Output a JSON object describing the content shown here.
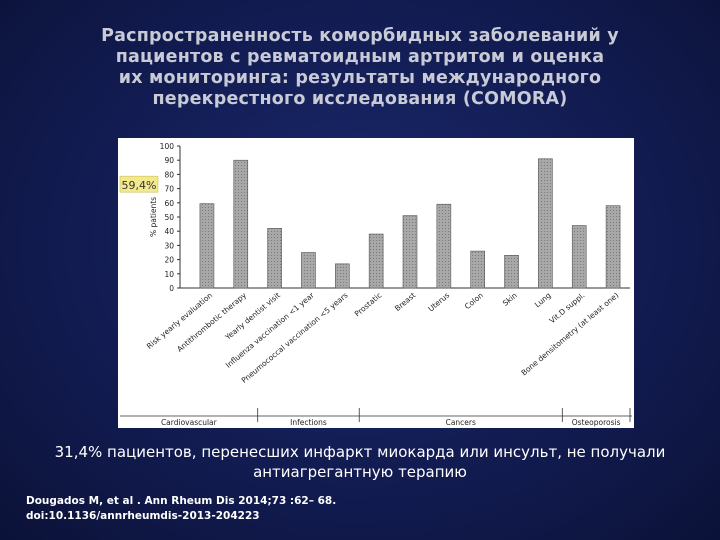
{
  "slide": {
    "title_lines": [
      "Распространенность коморбидных заболеваний у",
      "пациентов с ревматоидным артритом и оценка",
      "их мониторинга: результаты международного",
      "перекрестного исследования (COMORA)"
    ],
    "caption": "31,4% пациентов, перенесших инфаркт миокарда или инсульт, не получали антиагрегантную терапию",
    "reference_lines": [
      "Dougados M, et al . Ann Rheum Dis 2014;73 :62– 68.",
      "doi:10.1136/annrheumdis-2013-204223"
    ]
  },
  "chart_data": {
    "type": "bar",
    "ylabel": "% patients",
    "ylim": [
      0,
      100
    ],
    "yticks": [
      0,
      10,
      20,
      30,
      40,
      50,
      60,
      70,
      80,
      90,
      100
    ],
    "annotation": "59,4%",
    "categories": [
      "Risk yearly evaluation",
      "Antithrombotic therapy",
      "Yearly dentist visit",
      "Influenza vaccination <1 year",
      "Pneumococcal vaccination <5 years",
      "Prostatic",
      "Breast",
      "Uterus",
      "Colon",
      "Skin",
      "Lung",
      "Vit.D suppl.",
      "Bone densitometry (at least one)"
    ],
    "values": [
      59.4,
      90,
      42,
      25,
      17,
      38,
      51,
      59,
      26,
      23,
      91,
      44,
      58
    ],
    "groups": [
      {
        "name": "Cardiovascular",
        "start": 0,
        "end": 1
      },
      {
        "name": "Infections",
        "start": 2,
        "end": 4
      },
      {
        "name": "Cancers",
        "start": 5,
        "end": 10
      },
      {
        "name": "Osteoporosis",
        "start": 11,
        "end": 12
      }
    ],
    "colors": {
      "bar_fill": "#a8a8a8",
      "bar_stroke": "#555555",
      "annotation_box": "#f2e98c"
    }
  }
}
